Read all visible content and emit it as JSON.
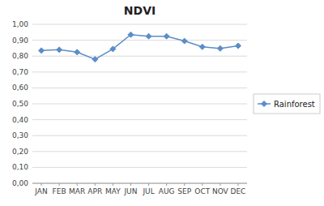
{
  "chart_data": {
    "type": "line",
    "title": "NDVI",
    "categories": [
      "JAN",
      "FEB",
      "MAR",
      "APR",
      "MAY",
      "JUN",
      "JUL",
      "AUG",
      "SEP",
      "OCT",
      "NOV",
      "DEC"
    ],
    "series": [
      {
        "name": "Rainforest",
        "color": "#5B8DC8",
        "marker": "diamond",
        "values": [
          0.835,
          0.84,
          0.825,
          0.78,
          0.845,
          0.935,
          0.925,
          0.925,
          0.895,
          0.858,
          0.848,
          0.865
        ]
      }
    ],
    "ylim": [
      0.0,
      1.0
    ],
    "yticks": [
      {
        "value": 0.0,
        "label": "0,00"
      },
      {
        "value": 0.1,
        "label": "0,10"
      },
      {
        "value": 0.2,
        "label": "0,20"
      },
      {
        "value": 0.3,
        "label": "0,30"
      },
      {
        "value": 0.4,
        "label": "0,40"
      },
      {
        "value": 0.5,
        "label": "0,50"
      },
      {
        "value": 0.6,
        "label": "0,60"
      },
      {
        "value": 0.7,
        "label": "0,70"
      },
      {
        "value": 0.8,
        "label": "0,80"
      },
      {
        "value": 0.9,
        "label": "0,90"
      },
      {
        "value": 1.0,
        "label": "1,00"
      }
    ],
    "grid": true,
    "legend": "right"
  }
}
